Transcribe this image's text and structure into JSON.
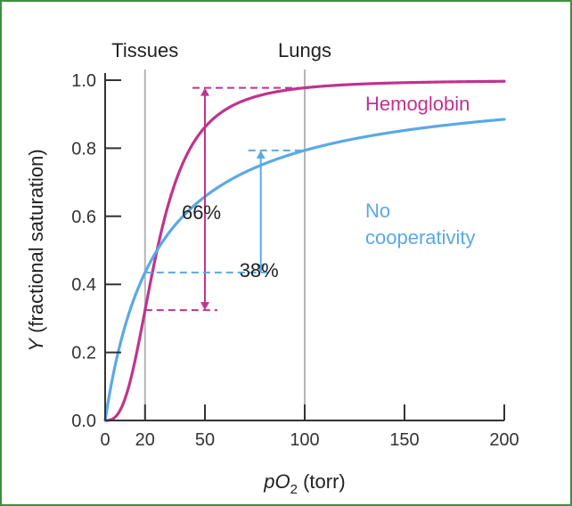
{
  "chart_data": {
    "type": "line",
    "xlabel_prefix": "pO",
    "xlabel_sub": "2",
    "xlabel_suffix": " (torr)",
    "ylabel_var": "Y",
    "ylabel_rest": " (fractional saturation)",
    "xlim": [
      0,
      200
    ],
    "ylim": [
      0,
      1.0
    ],
    "x_ticks": [
      0,
      20,
      50,
      100,
      150,
      200
    ],
    "y_ticks": [
      0.0,
      0.2,
      0.4,
      0.6,
      0.8,
      1.0
    ],
    "y_tick_labels": [
      "0.0",
      "0.2",
      "0.4",
      "0.6",
      "0.8",
      "1.0"
    ],
    "x_tick_labels": [
      "0",
      "20",
      "50",
      "100",
      "150",
      "200"
    ],
    "grid": false,
    "reference_lines": [
      {
        "label": "Tissues",
        "x": 20
      },
      {
        "label": "Lungs",
        "x": 100
      }
    ],
    "series": [
      {
        "name": "Hemoglobin",
        "color": "#c0338f",
        "model": "hill",
        "p50": 26,
        "n": 2.8
      },
      {
        "name": "No cooperativity",
        "name_lines": [
          "No",
          "cooperativity"
        ],
        "color": "#5aa9e6",
        "model": "hill",
        "p50": 26,
        "n": 1
      }
    ],
    "annotations": [
      {
        "text": "66%",
        "color": "#222222",
        "series": 0,
        "x": 50
      },
      {
        "text": "38%",
        "color": "#222222",
        "series": 1,
        "x": 78
      }
    ]
  }
}
